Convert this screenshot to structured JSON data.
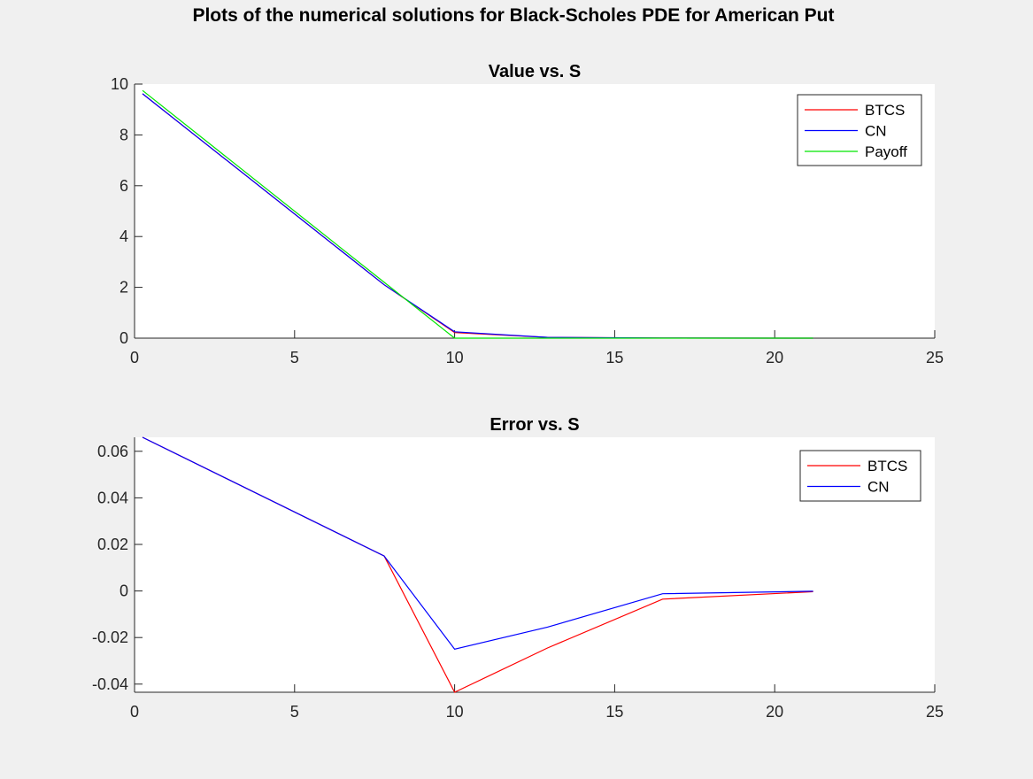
{
  "figure": {
    "title": "Plots of the numerical solutions for Black-Scholes PDE for American Put"
  },
  "chart_data": [
    {
      "type": "line",
      "title": "Value vs. S",
      "xlabel": "",
      "ylabel": "",
      "xlim": [
        0,
        25
      ],
      "ylim": [
        0,
        10
      ],
      "xticks": [
        "0",
        "5",
        "10",
        "15",
        "20",
        "25"
      ],
      "yticks": [
        "0",
        "2",
        "4",
        "6",
        "8",
        "10"
      ],
      "legend": "top-right",
      "grid": false,
      "series": [
        {
          "name": "BTCS",
          "color": "#ff0000",
          "x": [
            0.25,
            7.8,
            10,
            12.9,
            16.5,
            21.2
          ],
          "y": [
            9.62,
            2.1,
            0.22,
            0.03,
            0.005,
            0.0
          ]
        },
        {
          "name": "CN",
          "color": "#0000ff",
          "x": [
            0.25,
            7.8,
            10,
            12.9,
            16.5,
            21.2
          ],
          "y": [
            9.62,
            2.1,
            0.25,
            0.03,
            0.005,
            0.0
          ]
        },
        {
          "name": "Payoff",
          "color": "#00e600",
          "x": [
            0.25,
            7.8,
            10,
            12.9,
            16.5,
            21.2
          ],
          "y": [
            9.75,
            2.2,
            0.0,
            0.0,
            0.0,
            0.0
          ]
        }
      ]
    },
    {
      "type": "line",
      "title": "Error vs. S",
      "xlabel": "",
      "ylabel": "",
      "xlim": [
        0,
        25
      ],
      "ylim": [
        -0.0435,
        0.066
      ],
      "xticks": [
        "0",
        "5",
        "10",
        "15",
        "20",
        "25"
      ],
      "yticks": [
        "-0.04",
        "-0.02",
        "0",
        "0.02",
        "0.04",
        "0.06"
      ],
      "ytick_values": [
        -0.04,
        -0.02,
        0,
        0.02,
        0.04,
        0.06
      ],
      "legend": "top-right",
      "grid": false,
      "series": [
        {
          "name": "BTCS",
          "color": "#ff0000",
          "x": [
            0.25,
            7.8,
            10,
            12.9,
            16.5,
            21.2
          ],
          "y": [
            0.066,
            0.015,
            -0.0435,
            -0.0245,
            -0.0035,
            -0.0003
          ]
        },
        {
          "name": "CN",
          "color": "#0000ff",
          "x": [
            0.25,
            7.8,
            10,
            12.9,
            16.5,
            21.2
          ],
          "y": [
            0.066,
            0.015,
            -0.025,
            -0.0155,
            -0.0012,
            -0.0001
          ]
        }
      ]
    }
  ]
}
